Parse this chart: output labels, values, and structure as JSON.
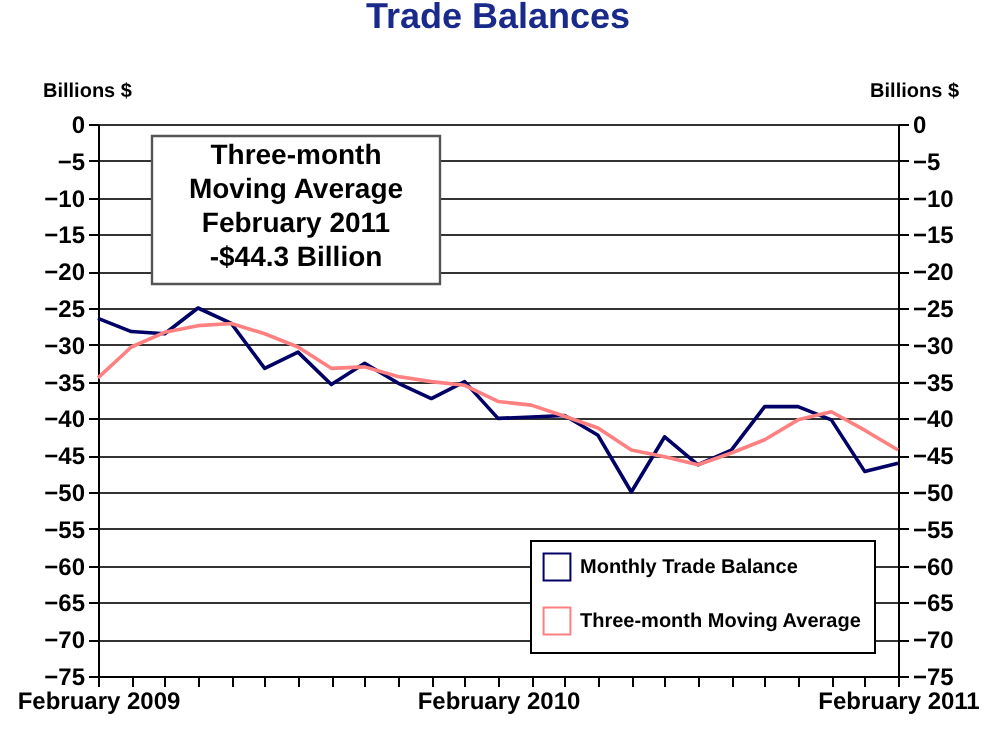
{
  "chart_data": {
    "type": "line",
    "title": "Trade Balances",
    "ylabel": "Billions $",
    "y2label": "Billions $",
    "categories": [
      "February 2009",
      null,
      null,
      null,
      null,
      null,
      null,
      null,
      null,
      null,
      null,
      null,
      "February 2010",
      null,
      null,
      null,
      null,
      null,
      null,
      null,
      null,
      null,
      null,
      null,
      "February 2011"
    ],
    "series": [
      {
        "name": "Monthly Trade Balance",
        "color": "#000066",
        "values": [
          -26.4,
          -28.2,
          -28.5,
          -25.0,
          -27.1,
          -33.2,
          -31.0,
          -35.4,
          -32.5,
          -35.2,
          -37.3,
          -35.0,
          -40.0,
          -39.8,
          -39.6,
          -42.3,
          -50.0,
          -42.5,
          -46.3,
          -44.3,
          -38.4,
          -38.4,
          -40.2,
          -47.2,
          -46.1
        ]
      },
      {
        "name": "Three-month Moving Average",
        "color": "#ff8080",
        "axis": "y2",
        "values": [
          -34.5,
          -30.3,
          -28.3,
          -27.4,
          -27.1,
          -28.5,
          -30.3,
          -33.2,
          -33.0,
          -34.3,
          -35.0,
          -35.5,
          -37.7,
          -38.2,
          -39.7,
          -41.3,
          -44.3,
          -45.2,
          -46.3,
          -44.7,
          -42.9,
          -40.2,
          -39.1,
          -41.6,
          -44.3
        ]
      }
    ],
    "ylim": [
      -75,
      0
    ],
    "yticks": [
      -75,
      -70,
      -65,
      -60,
      -55,
      -50,
      -45,
      -40,
      -35,
      -30,
      -25,
      -20,
      -15,
      -10,
      -5,
      0
    ],
    "y2lim": [
      -75,
      0
    ],
    "y2ticks": [
      -75,
      -70,
      -65,
      -60,
      -55,
      -50,
      -45,
      -40,
      -35,
      -30,
      -25,
      -20,
      -15,
      -10,
      -5,
      0
    ],
    "grid": "y",
    "legend": "bottom right",
    "marker": "none",
    "line_style": "solid",
    "annotations": [
      "Three-month\nMoving Average\nFebruary 2011\n-$44.3 Billion"
    ]
  }
}
